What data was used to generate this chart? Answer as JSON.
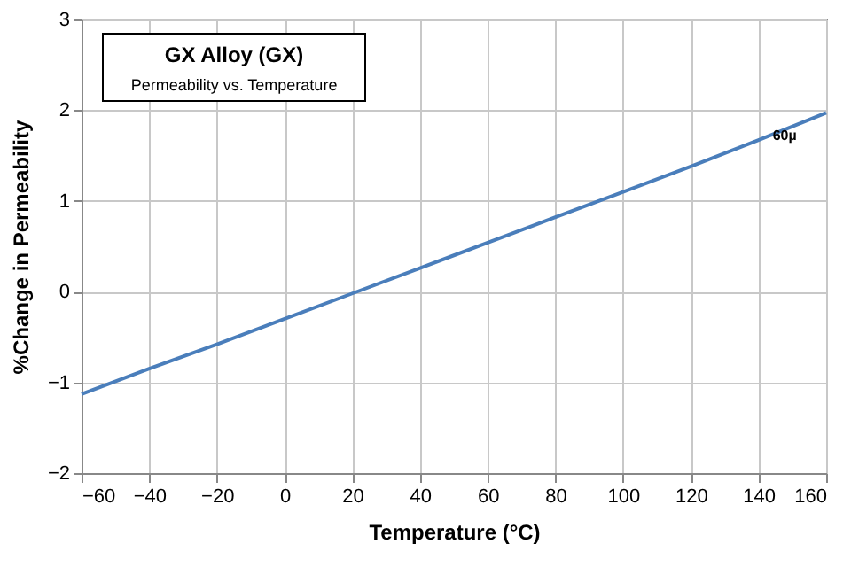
{
  "chart_data": {
    "type": "line",
    "title": "GX Alloy  (GX)",
    "subtitle": "Permeability vs. Temperature",
    "xlabel": "Temperature (°C)",
    "ylabel": "%Change in Permeability",
    "x": [
      -60,
      -40,
      -20,
      0,
      20,
      40,
      60,
      80,
      100,
      120,
      140,
      160
    ],
    "series": [
      {
        "name": "60µ",
        "color": "#4a7ebb",
        "values": [
          -1.13,
          -0.85,
          -0.58,
          -0.3,
          -0.02,
          0.26,
          0.54,
          0.82,
          1.1,
          1.38,
          1.67,
          1.97
        ]
      }
    ],
    "xlim": [
      -60,
      160
    ],
    "xticks": [
      -60,
      -40,
      -20,
      0,
      20,
      40,
      60,
      80,
      100,
      120,
      140,
      160
    ],
    "ylim": [
      -2,
      3
    ],
    "yticks": [
      -2,
      -1,
      0,
      1,
      2,
      3
    ],
    "grid": true,
    "marker": "none",
    "line_style": "solid"
  }
}
